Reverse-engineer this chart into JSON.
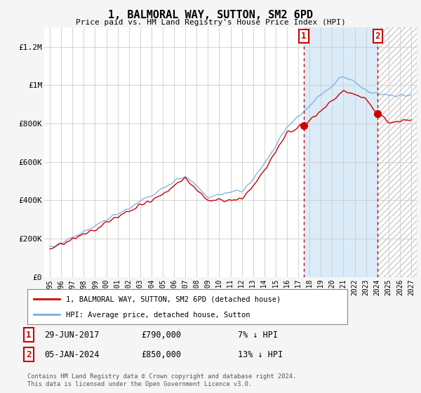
{
  "title": "1, BALMORAL WAY, SUTTON, SM2 6PD",
  "subtitle": "Price paid vs. HM Land Registry's House Price Index (HPI)",
  "background_color": "#f5f5f5",
  "plot_bg_color": "#ffffff",
  "ylim": [
    0,
    1300000
  ],
  "yticks": [
    0,
    200000,
    400000,
    600000,
    800000,
    1000000,
    1200000
  ],
  "ytick_labels": [
    "£0",
    "£200K",
    "£400K",
    "£600K",
    "£800K",
    "£1M",
    "£1.2M"
  ],
  "legend_label_red": "1, BALMORAL WAY, SUTTON, SM2 6PD (detached house)",
  "legend_label_blue": "HPI: Average price, detached house, Sutton",
  "annotation1": {
    "label": "1",
    "date": "29-JUN-2017",
    "price": "£790,000",
    "info": "7% ↓ HPI"
  },
  "annotation2": {
    "label": "2",
    "date": "05-JAN-2024",
    "price": "£850,000",
    "info": "13% ↓ HPI"
  },
  "footer": "Contains HM Land Registry data © Crown copyright and database right 2024.\nThis data is licensed under the Open Government Licence v3.0.",
  "marker1_x": 2017.5,
  "marker1_y": 790000,
  "marker2_x": 2024.05,
  "marker2_y": 850000,
  "hpi_color": "#7aaddd",
  "price_color": "#cc0000",
  "vline_color": "#cc0000",
  "shade_color": "#ddeeff",
  "xmin": 1994.5,
  "xmax": 2027.5
}
